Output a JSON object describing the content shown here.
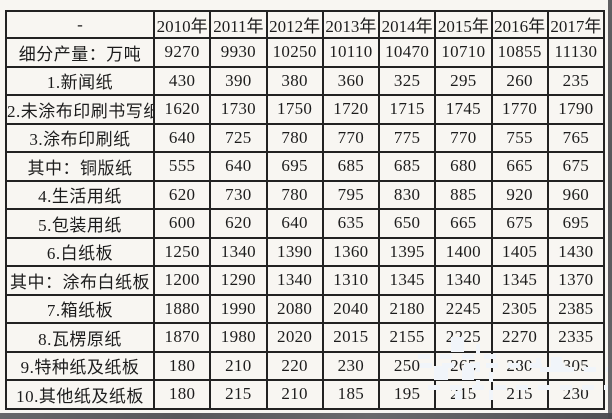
{
  "colors": {
    "page_background": "#f8f6f2",
    "grid_border": "#222222",
    "text": "#1c1c1c",
    "watermark": "#f1f5fa",
    "edge_band": "#4a4a4f"
  },
  "chart_data": {
    "type": "table",
    "corner_label": "-",
    "unit_row_label": "细分产量：万吨",
    "columns": [
      "2010年",
      "2011年",
      "2012年",
      "2013年",
      "2014年",
      "2015年",
      "2016年",
      "2017年"
    ],
    "rows": [
      {
        "label": "细分产量：万吨",
        "values": [
          9270,
          9930,
          10250,
          10110,
          10470,
          10710,
          10855,
          11130
        ]
      },
      {
        "label": "1.新闻纸",
        "values": [
          430,
          390,
          380,
          360,
          325,
          295,
          260,
          235
        ]
      },
      {
        "label": "2.未涂布印刷书写纸",
        "values": [
          1620,
          1730,
          1750,
          1720,
          1715,
          1745,
          1770,
          1790
        ]
      },
      {
        "label": "3.涂布印刷纸",
        "values": [
          640,
          725,
          780,
          770,
          775,
          770,
          755,
          765
        ]
      },
      {
        "label": "其中：铜版纸",
        "values": [
          555,
          640,
          695,
          685,
          685,
          680,
          665,
          675
        ]
      },
      {
        "label": "4.生活用纸",
        "values": [
          620,
          730,
          780,
          795,
          830,
          885,
          920,
          960
        ]
      },
      {
        "label": "5.包装用纸",
        "values": [
          600,
          620,
          640,
          635,
          650,
          665,
          675,
          695
        ]
      },
      {
        "label": "6.白纸板",
        "values": [
          1250,
          1340,
          1390,
          1360,
          1395,
          1400,
          1405,
          1430
        ]
      },
      {
        "label": "其中：涂布白纸板",
        "values": [
          1200,
          1290,
          1340,
          1310,
          1345,
          1340,
          1345,
          1370
        ]
      },
      {
        "label": "7.箱纸板",
        "values": [
          1880,
          1990,
          2080,
          2040,
          2180,
          2245,
          2305,
          2385
        ]
      },
      {
        "label": "8.瓦楞原纸",
        "values": [
          1870,
          1980,
          2020,
          2015,
          2155,
          2225,
          2270,
          2335
        ]
      },
      {
        "label": "9.特种纸及纸板",
        "values": [
          180,
          210,
          220,
          230,
          250,
          265,
          280,
          305
        ]
      },
      {
        "label": "10.其他纸及纸板",
        "values": [
          180,
          215,
          210,
          185,
          195,
          215,
          215,
          230
        ]
      }
    ]
  }
}
